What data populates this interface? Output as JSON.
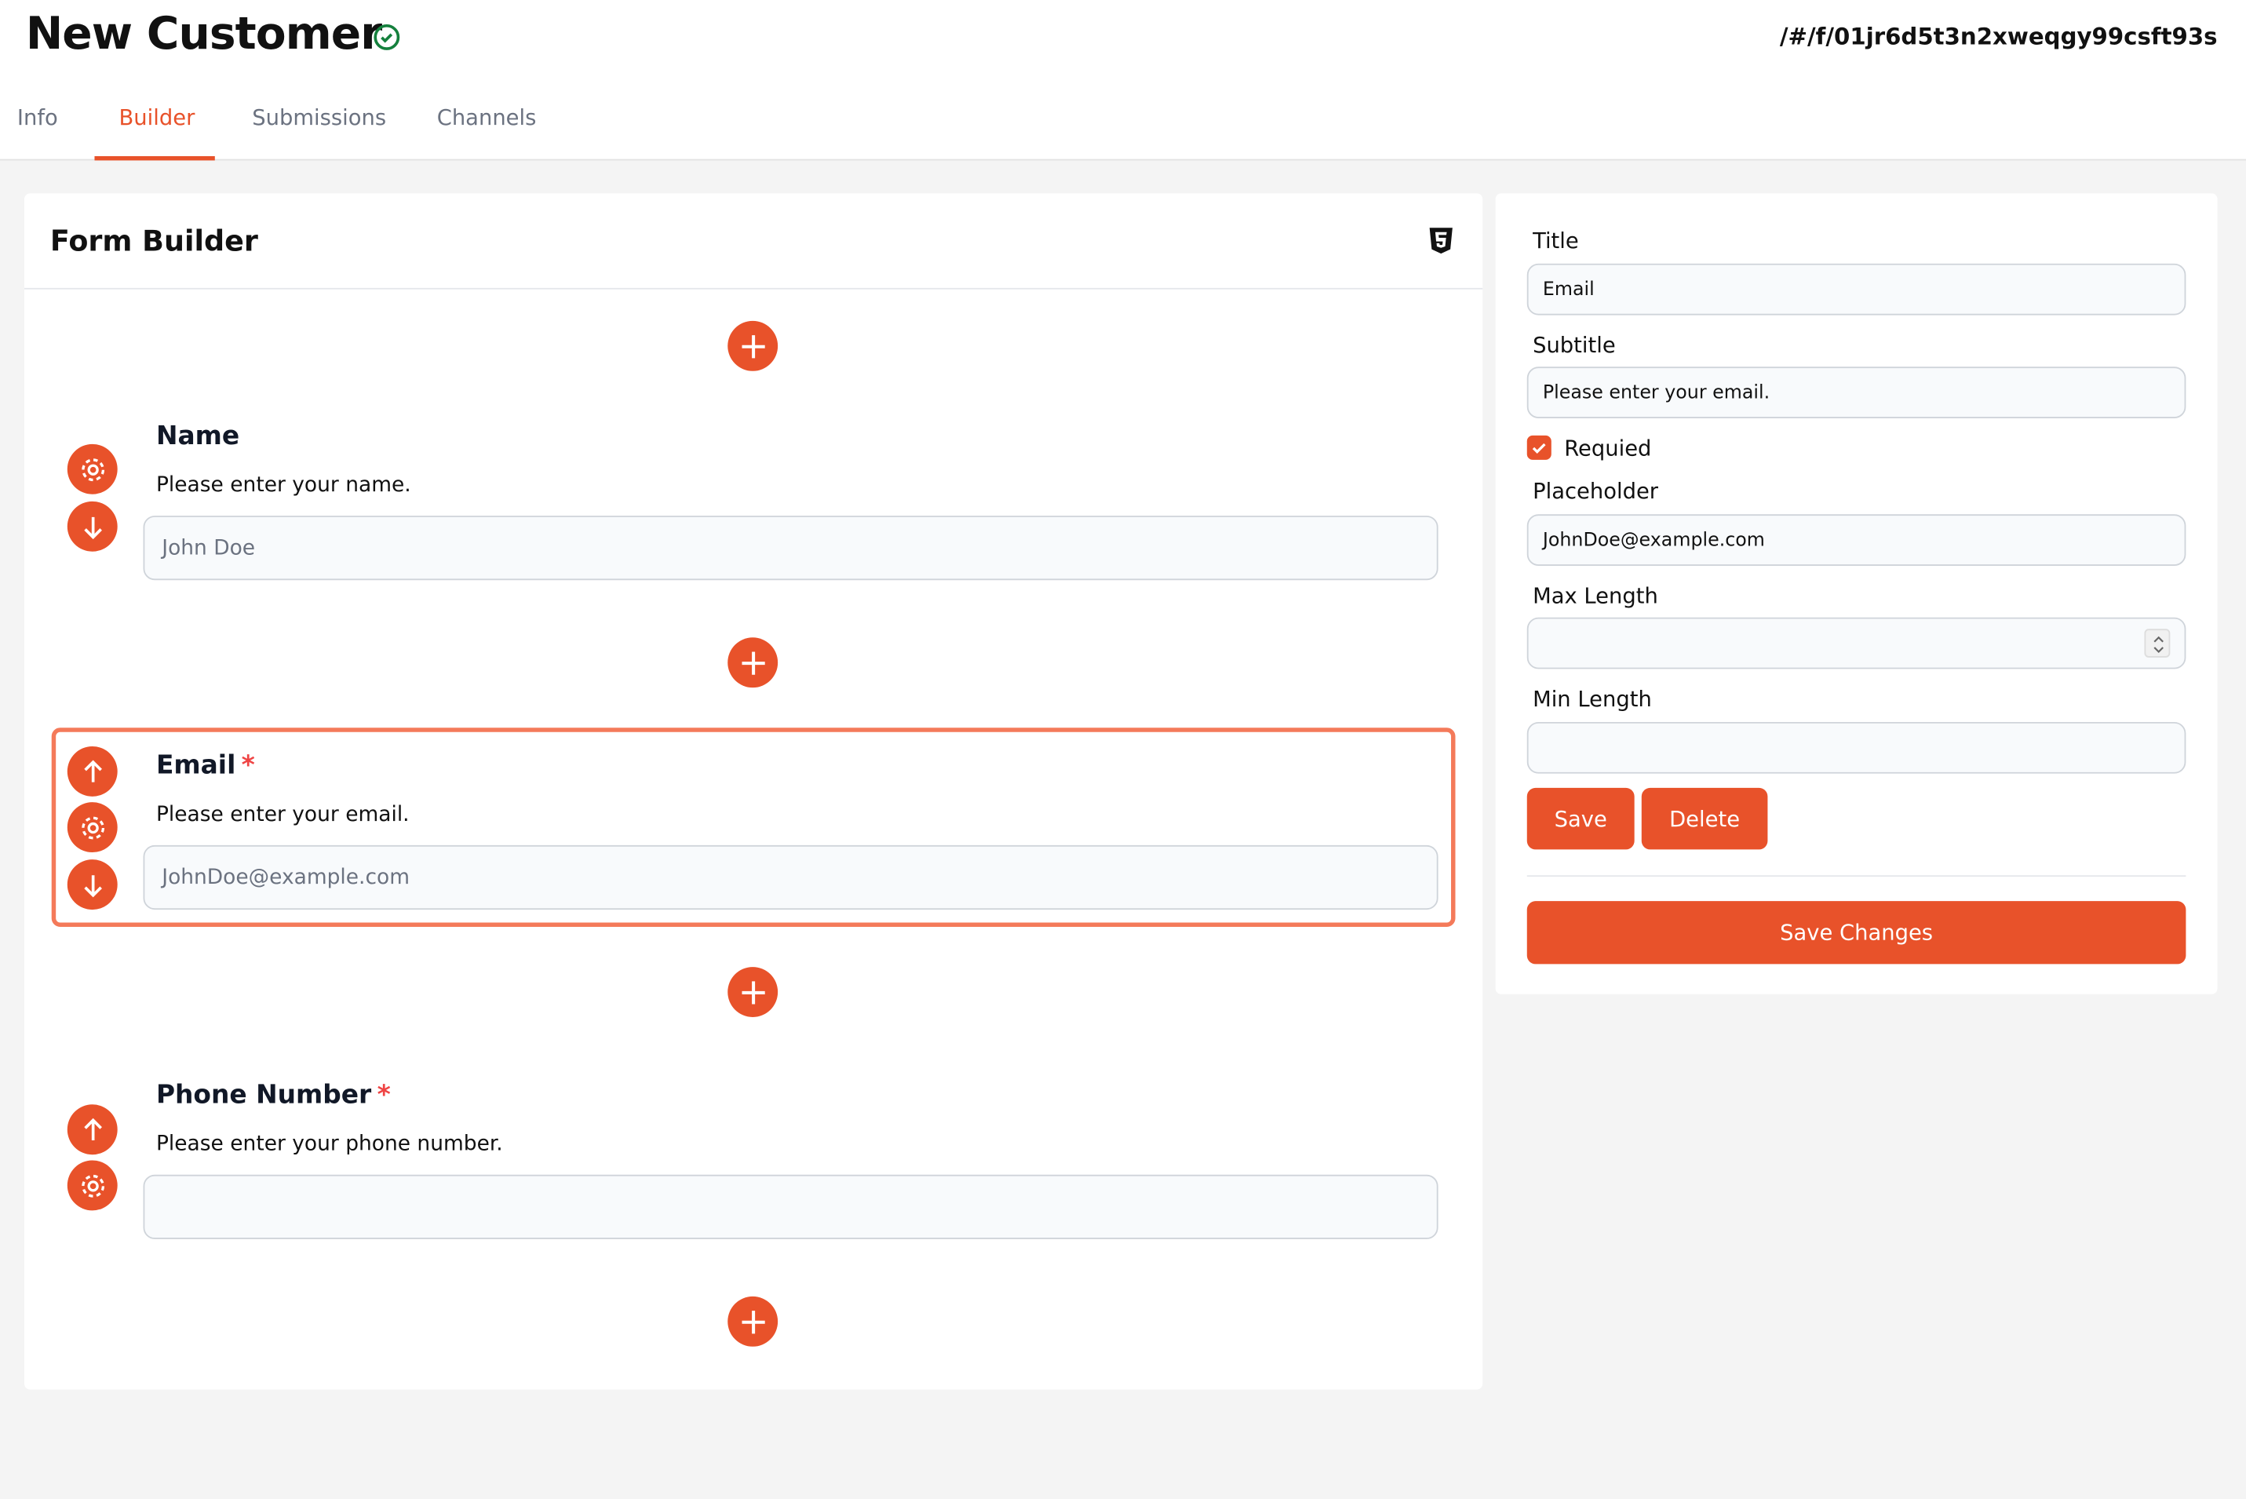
{
  "header": {
    "title": "New Customer",
    "status_icon": "check-circle-icon",
    "url": "/#/f/01jr6d5t3n2xweqgy99csft93s"
  },
  "tabs": [
    {
      "label": "Info"
    },
    {
      "label": "Builder",
      "active": true
    },
    {
      "label": "Submissions"
    },
    {
      "label": "Channels"
    }
  ],
  "builder": {
    "title": "Form Builder",
    "html_icon": "html5-icon",
    "fields": [
      {
        "title": "Name",
        "required": false,
        "subtitle": "Please enter your name.",
        "placeholder": "John Doe"
      },
      {
        "title": "Email",
        "required": true,
        "subtitle": "Please enter your email.",
        "placeholder": "JohnDoe@example.com",
        "selected": true
      },
      {
        "title": "Phone Number",
        "required": true,
        "subtitle": "Please enter your phone number.",
        "placeholder": ""
      }
    ],
    "required_mark": "*"
  },
  "editor": {
    "title_label": "Title",
    "title_value": "Email",
    "subtitle_label": "Subtitle",
    "subtitle_value": "Please enter your email.",
    "required_label": "Requied",
    "required_checked": true,
    "placeholder_label": "Placeholder",
    "placeholder_value": "JohnDoe@example.com",
    "max_length_label": "Max Length",
    "max_length_value": "",
    "min_length_label": "Min Length",
    "min_length_value": "",
    "save_label": "Save",
    "delete_label": "Delete",
    "save_changes_label": "Save Changes"
  },
  "colors": {
    "accent": "#e8522a",
    "selected_border": "#f47a5a",
    "success": "#15803d",
    "required": "#ef4444"
  }
}
